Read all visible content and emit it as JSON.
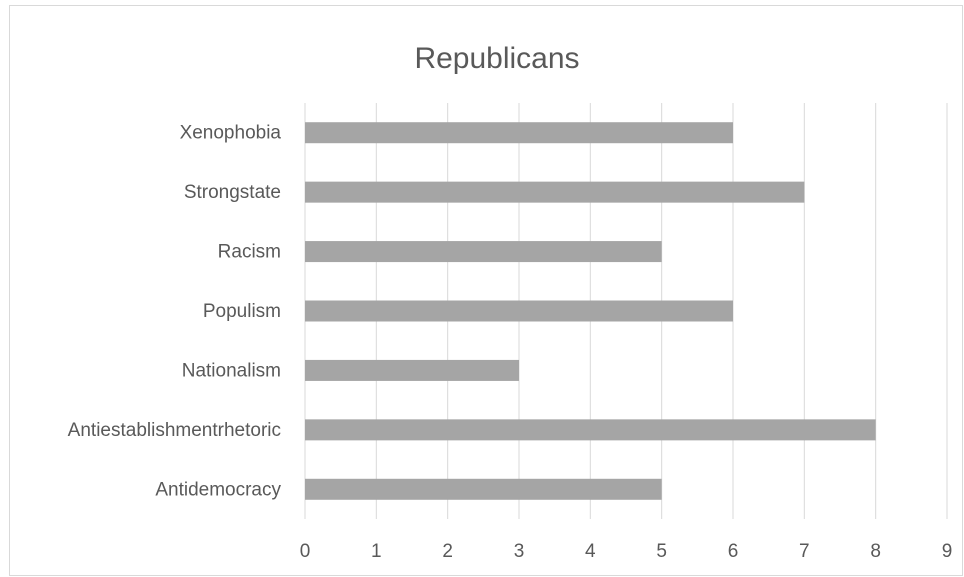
{
  "chart_data": {
    "type": "bar",
    "orientation": "horizontal",
    "title": "Republicans",
    "xlabel": "",
    "ylabel": "",
    "categories": [
      "Antidemocracy",
      "Antiestablishmentrhetoric",
      "Nationalism",
      "Populism",
      "Racism",
      "Strongstate",
      "Xenophobia"
    ],
    "values": [
      5,
      8,
      3,
      6,
      5,
      7,
      6
    ],
    "xlim": [
      0,
      9
    ],
    "xticks": [
      "0",
      "1",
      "2",
      "3",
      "4",
      "5",
      "6",
      "7",
      "8",
      "9"
    ],
    "grid": true,
    "legend": "none",
    "colors": {
      "bar": "#a5a5a5",
      "grid": "#d9d9d9",
      "text": "#595959",
      "border": "#d9d9d9"
    }
  }
}
